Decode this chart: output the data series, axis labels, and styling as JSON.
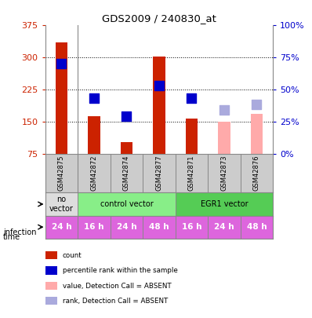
{
  "title": "GDS2009 / 240830_at",
  "samples": [
    "GSM42875",
    "GSM42872",
    "GSM42874",
    "GSM42877",
    "GSM42871",
    "GSM42873",
    "GSM42876"
  ],
  "bar_values": [
    335,
    163,
    103,
    302,
    158,
    150,
    168
  ],
  "bar_colors": [
    "#cc2200",
    "#cc2200",
    "#cc2200",
    "#cc2200",
    "#cc2200",
    "#ffaaaa",
    "#ffaaaa"
  ],
  "rank_values": [
    285,
    205,
    163,
    235,
    205,
    178,
    190
  ],
  "rank_colors": [
    "#0000cc",
    "#0000cc",
    "#0000cc",
    "#0000cc",
    "#0000cc",
    "#aaaadd",
    "#aaaadd"
  ],
  "ylim_left": [
    75,
    375
  ],
  "ylim_right": [
    0,
    100
  ],
  "yticks_left": [
    75,
    150,
    225,
    300,
    375
  ],
  "yticks_right": [
    0,
    25,
    50,
    75,
    100
  ],
  "ytick_labels_right": [
    "0%",
    "25%",
    "50%",
    "75%",
    "100%"
  ],
  "infection_groups": [
    {
      "label": "no\nvector",
      "span": [
        0,
        1
      ],
      "color": "#dddddd"
    },
    {
      "label": "control vector",
      "span": [
        1,
        4
      ],
      "color": "#88ee88"
    },
    {
      "label": "EGR1 vector",
      "span": [
        4,
        7
      ],
      "color": "#55cc55"
    }
  ],
  "time_labels": [
    "24 h",
    "16 h",
    "24 h",
    "48 h",
    "16 h",
    "24 h",
    "48 h"
  ],
  "time_color": "#dd66dd",
  "sample_bg_color": "#cccccc",
  "sample_border_color": "#888888",
  "legend_items": [
    {
      "color": "#cc2200",
      "label": "count"
    },
    {
      "color": "#0000cc",
      "label": "percentile rank within the sample"
    },
    {
      "color": "#ffaaaa",
      "label": "value, Detection Call = ABSENT"
    },
    {
      "color": "#aaaadd",
      "label": "rank, Detection Call = ABSENT"
    }
  ],
  "left_label_color": "#cc2200",
  "right_label_color": "#0000cc",
  "grid_lines": [
    150,
    225,
    300
  ]
}
